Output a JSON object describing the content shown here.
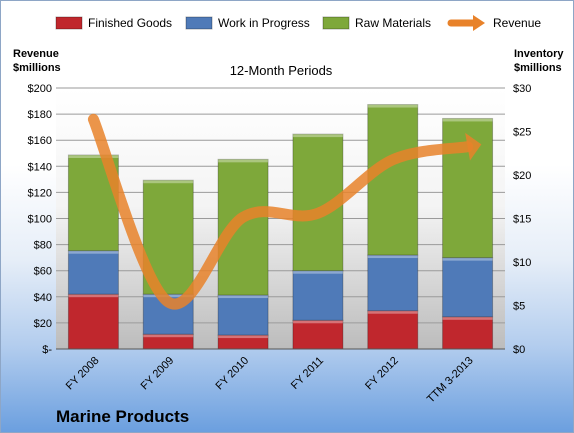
{
  "chart_data": {
    "type": "bar",
    "subtitle": "12-Month Periods",
    "company": "Marine Products",
    "left_axis_title": [
      "Revenue",
      "$millions"
    ],
    "right_axis_title": [
      "Inventory",
      "$millions"
    ],
    "categories": [
      "FY 2008",
      "FY 2009",
      "FY 2010",
      "FY 2011",
      "FY 2012",
      "TTM 3-2013"
    ],
    "y_left": {
      "min": 0,
      "max": 200,
      "step": 20,
      "tick_labels": [
        "$-",
        "$20",
        "$40",
        "$60",
        "$80",
        "$100",
        "$120",
        "$140",
        "$160",
        "$180",
        "$200"
      ]
    },
    "y_right": {
      "min": 0,
      "max": 30,
      "step": 5,
      "tick_labels": [
        "$0",
        "$5",
        "$10",
        "$15",
        "$20",
        "$25",
        "$30"
      ]
    },
    "series": [
      {
        "name": "Finished Goods",
        "kind": "stacked-bar",
        "axis": "right",
        "color": "#c0272d",
        "values": [
          6.3,
          1.7,
          1.6,
          3.3,
          4.4,
          3.7
        ]
      },
      {
        "name": "Work in Progress",
        "kind": "stacked-bar",
        "axis": "right",
        "color": "#4f7ab8",
        "values": [
          5.0,
          4.6,
          4.6,
          5.7,
          6.4,
          6.8
        ]
      },
      {
        "name": "Raw Materials",
        "kind": "stacked-bar",
        "axis": "right",
        "color": "#7ea83a",
        "values": [
          11.0,
          13.1,
          15.6,
          15.7,
          17.3,
          16.0
        ]
      },
      {
        "name": "Revenue",
        "kind": "line",
        "axis": "left",
        "color": "#e8822a",
        "values": [
          176,
          36,
          101,
          104,
          145,
          155
        ]
      }
    ],
    "grid": true,
    "legend_position": "top"
  }
}
